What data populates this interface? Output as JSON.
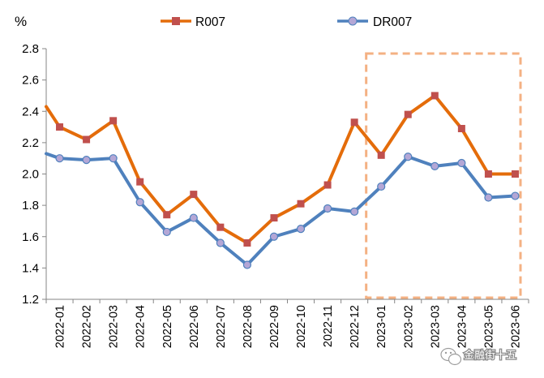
{
  "chart_data": {
    "type": "line",
    "ylabel": "%",
    "ylim": [
      1.2,
      2.8
    ],
    "yticks": [
      "1.2",
      "1.4",
      "1.6",
      "1.8",
      "2.0",
      "2.2",
      "2.4",
      "2.6",
      "2.8"
    ],
    "categories": [
      "2022-01",
      "2022-02",
      "2022-03",
      "2022-04",
      "2022-05",
      "2022-06",
      "2022-07",
      "2022-08",
      "2022-09",
      "2022-10",
      "2022-11",
      "2022-12",
      "2023-01",
      "2023-02",
      "2023-03",
      "2023-04",
      "2023-05",
      "2023-06"
    ],
    "series": [
      {
        "name": "R007",
        "color": "#E46C0A",
        "marker_color": "#C0504D",
        "marker": "square",
        "start_value": 2.43,
        "values": [
          2.3,
          2.22,
          2.34,
          1.95,
          1.74,
          1.87,
          1.66,
          1.56,
          1.72,
          1.81,
          1.93,
          2.33,
          2.12,
          2.38,
          2.5,
          2.29,
          2.0,
          2.0
        ]
      },
      {
        "name": "DR007",
        "color": "#4F81BD",
        "marker_color": "#B4A7D6",
        "marker": "circle",
        "start_value": 2.13,
        "values": [
          2.1,
          2.09,
          2.1,
          1.82,
          1.63,
          1.72,
          1.56,
          1.42,
          1.6,
          1.65,
          1.78,
          1.76,
          1.92,
          2.11,
          2.05,
          2.07,
          1.85,
          1.86
        ]
      }
    ],
    "highlight": {
      "from": "2023-01",
      "to": "2023-06",
      "style": "dashed",
      "color": "#F4B183"
    },
    "legend_position": "top"
  },
  "watermark": {
    "text": "金融街十五",
    "icon": "wechat-icon"
  }
}
